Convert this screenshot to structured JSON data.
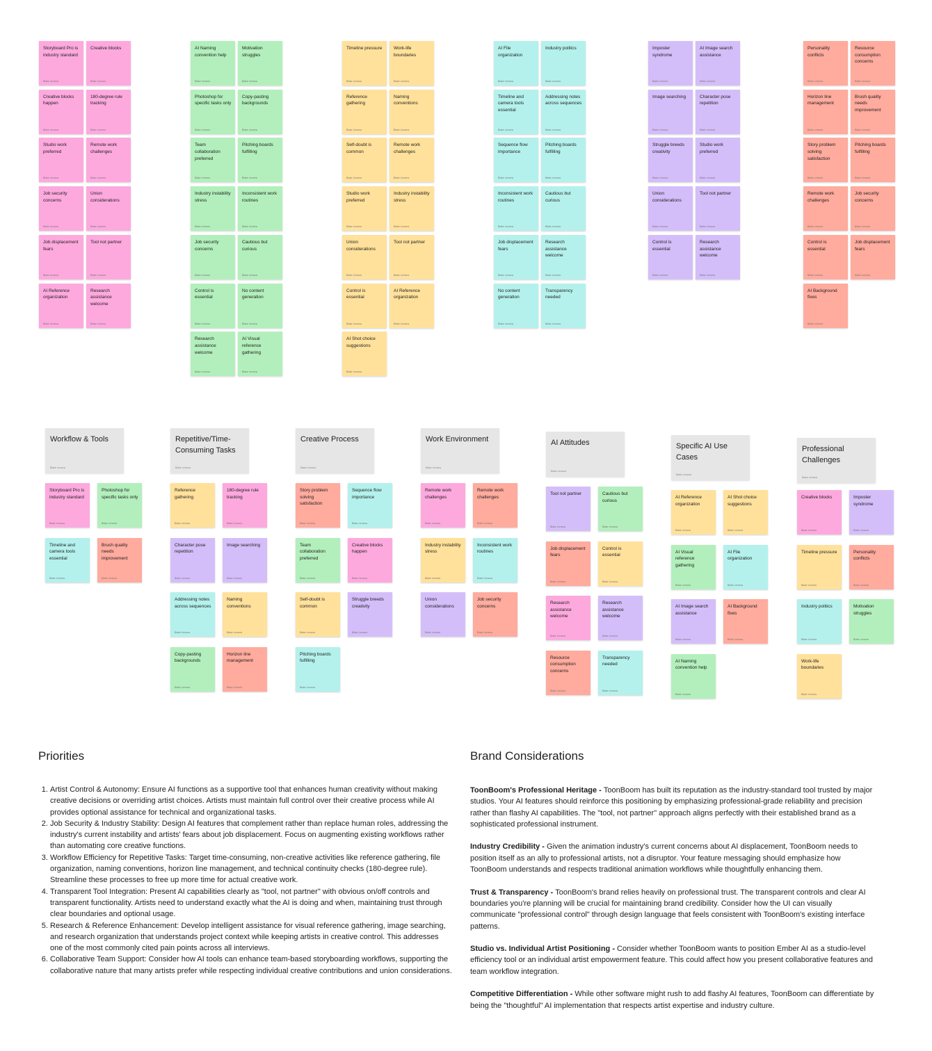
{
  "author": "Blake Lemons",
  "board_clusters": [
    {
      "notes": [
        {
          "text": "Storyboard Pro is industry standard",
          "color": "pink"
        },
        {
          "text": "Creative blocks",
          "color": "pink"
        },
        {
          "text": "Creative blocks happen",
          "color": "pink"
        },
        {
          "text": "180-degree rule tracking",
          "color": "pink"
        },
        {
          "text": "Studio work preferred",
          "color": "pink"
        },
        {
          "text": "Remote work challenges",
          "color": "pink"
        },
        {
          "text": "Job security concerns",
          "color": "pink"
        },
        {
          "text": "Union considerations",
          "color": "pink"
        },
        {
          "text": "Job displacement fears",
          "color": "pink"
        },
        {
          "text": "Tool not partner",
          "color": "pink"
        },
        {
          "text": "AI Reference organization",
          "color": "pink"
        },
        {
          "text": "Research assistance welcome",
          "color": "pink"
        }
      ]
    },
    {
      "notes": [
        {
          "text": "AI Naming convention help",
          "color": "green"
        },
        {
          "text": "Motivation struggles",
          "color": "green"
        },
        {
          "text": "Photoshop for specific tasks only",
          "color": "green"
        },
        {
          "text": "Copy-pasting backgrounds",
          "color": "green"
        },
        {
          "text": "Team collaboration preferred",
          "color": "green"
        },
        {
          "text": "Pitching boards fulfilling",
          "color": "green"
        },
        {
          "text": "Industry instability stress",
          "color": "green"
        },
        {
          "text": "Inconsistent work routines",
          "color": "green"
        },
        {
          "text": "Job security concerns",
          "color": "green"
        },
        {
          "text": "Cautious but curious",
          "color": "green"
        },
        {
          "text": "Control is essential",
          "color": "green"
        },
        {
          "text": "No content generation",
          "color": "green"
        },
        {
          "text": "Research assistance welcome",
          "color": "green"
        },
        {
          "text": "AI Visual reference gathering",
          "color": "green"
        }
      ]
    },
    {
      "notes": [
        {
          "text": "Timeline pressure",
          "color": "yellow"
        },
        {
          "text": "Work-life boundaries",
          "color": "yellow"
        },
        {
          "text": "Reference gathering",
          "color": "yellow"
        },
        {
          "text": "Naming conventions",
          "color": "yellow"
        },
        {
          "text": "Self-doubt is common",
          "color": "yellow"
        },
        {
          "text": "Remote work challenges",
          "color": "yellow"
        },
        {
          "text": "Studio work preferred",
          "color": "yellow"
        },
        {
          "text": "Industry instability stress",
          "color": "yellow"
        },
        {
          "text": "Union considerations",
          "color": "yellow"
        },
        {
          "text": "Tool not partner",
          "color": "yellow"
        },
        {
          "text": "Control is essential",
          "color": "yellow"
        },
        {
          "text": "AI Reference organization",
          "color": "yellow"
        },
        {
          "text": "AI Shot choice suggestions",
          "color": "yellow"
        }
      ]
    },
    {
      "notes": [
        {
          "text": "AI File organization",
          "color": "cyan"
        },
        {
          "text": "Industry politics",
          "color": "cyan"
        },
        {
          "text": "Timeline and camera tools essential",
          "color": "cyan"
        },
        {
          "text": "Addressing notes across sequences",
          "color": "cyan"
        },
        {
          "text": "Sequence flow importance",
          "color": "cyan"
        },
        {
          "text": "Pitching boards fulfilling",
          "color": "cyan"
        },
        {
          "text": "Inconsistent work routines",
          "color": "cyan"
        },
        {
          "text": "Cautious but curious",
          "color": "cyan"
        },
        {
          "text": "Job displacement fears",
          "color": "cyan"
        },
        {
          "text": "Research assistance welcome",
          "color": "cyan"
        },
        {
          "text": "No content generation",
          "color": "cyan"
        },
        {
          "text": "Transparency needed",
          "color": "cyan"
        }
      ]
    },
    {
      "notes": [
        {
          "text": "Imposter syndrome",
          "color": "purple"
        },
        {
          "text": "AI Image search assistance",
          "color": "purple"
        },
        {
          "text": "Image searching",
          "color": "purple"
        },
        {
          "text": "Character pose repetition",
          "color": "purple"
        },
        {
          "text": "Struggle breeds creativity",
          "color": "purple"
        },
        {
          "text": "Studio work preferred",
          "color": "purple"
        },
        {
          "text": "Union considerations",
          "color": "purple"
        },
        {
          "text": "Tool not partner",
          "color": "purple"
        },
        {
          "text": "Control is essential",
          "color": "purple"
        },
        {
          "text": "Research assistance welcome",
          "color": "purple"
        }
      ]
    },
    {
      "notes": [
        {
          "text": "Personality conflicts",
          "color": "salmon"
        },
        {
          "text": "Resource consumption concerns",
          "color": "salmon"
        },
        {
          "text": "Horizon line management",
          "color": "salmon"
        },
        {
          "text": "Brush quality needs improvement",
          "color": "salmon"
        },
        {
          "text": "Story problem solving satisfaction",
          "color": "salmon"
        },
        {
          "text": "Pitching boards fulfilling",
          "color": "salmon"
        },
        {
          "text": "Remote work challenges",
          "color": "salmon"
        },
        {
          "text": "Job security concerns",
          "color": "salmon"
        },
        {
          "text": "Control is essential",
          "color": "salmon"
        },
        {
          "text": "Job displacement fears",
          "color": "salmon"
        },
        {
          "text": "AI Background fixes",
          "color": "salmon"
        }
      ]
    }
  ],
  "categories": [
    {
      "title": "Workflow & Tools",
      "notes": [
        {
          "text": "Storyboard Pro is industry standard",
          "color": "pink"
        },
        {
          "text": "Photoshop for specific tasks only",
          "color": "green"
        },
        {
          "text": "Timeline and camera tools essential",
          "color": "cyan"
        },
        {
          "text": "Brush quality needs improvement",
          "color": "salmon"
        }
      ]
    },
    {
      "title": "Repetitive/Time-Consuming Tasks",
      "notes": [
        {
          "text": "Reference gathering",
          "color": "yellow"
        },
        {
          "text": "180-degree rule tracking",
          "color": "pink"
        },
        {
          "text": "Character pose repetition",
          "color": "purple"
        },
        {
          "text": "Image searching",
          "color": "purple"
        },
        {
          "text": "Addressing notes across sequences",
          "color": "cyan"
        },
        {
          "text": "Naming conventions",
          "color": "yellow"
        },
        {
          "text": "Copy-pasting backgrounds",
          "color": "green"
        },
        {
          "text": "Horizon line management",
          "color": "salmon"
        }
      ]
    },
    {
      "title": "Creative Process",
      "notes": [
        {
          "text": "Story problem solving satisfaction",
          "color": "salmon"
        },
        {
          "text": "Sequence flow importance",
          "color": "cyan"
        },
        {
          "text": "Team collaboration preferred",
          "color": "green"
        },
        {
          "text": "Creative blocks happen",
          "color": "pink"
        },
        {
          "text": "Self-doubt is common",
          "color": "yellow"
        },
        {
          "text": "Struggle breeds creativity",
          "color": "purple"
        },
        {
          "text": "Pitching boards fulfilling",
          "color": "cyan"
        }
      ]
    },
    {
      "title": "Work Environment",
      "notes": [
        {
          "text": "Remote work challenges",
          "color": "pink"
        },
        {
          "text": "Remote work challenges",
          "color": "salmon"
        },
        {
          "text": "Industry instability stress",
          "color": "yellow"
        },
        {
          "text": "Inconsistent work routines",
          "color": "cyan"
        },
        {
          "text": "Union considerations",
          "color": "purple"
        },
        {
          "text": "Job security concerns",
          "color": "salmon"
        }
      ]
    },
    {
      "title": "AI Attitudes",
      "notes": [
        {
          "text": "Tool not partner",
          "color": "purple"
        },
        {
          "text": "Cautious but curious",
          "color": "green"
        },
        {
          "text": "Job displacement fears",
          "color": "salmon"
        },
        {
          "text": "Control is essential",
          "color": "yellow"
        },
        {
          "text": "Research assistance welcome",
          "color": "pink"
        },
        {
          "text": "Research assistance welcome",
          "color": "purple"
        },
        {
          "text": "Resource consumption concerns",
          "color": "salmon"
        },
        {
          "text": "Transparency needed",
          "color": "cyan"
        }
      ]
    },
    {
      "title": "Specific AI Use Cases",
      "notes": [
        {
          "text": "AI Reference organization",
          "color": "yellow"
        },
        {
          "text": "AI Shot choice suggestions",
          "color": "yellow"
        },
        {
          "text": "AI Visual reference gathering",
          "color": "green"
        },
        {
          "text": "AI File organization",
          "color": "cyan"
        },
        {
          "text": "AI Image search assistance",
          "color": "purple"
        },
        {
          "text": "AI Background fixes",
          "color": "salmon"
        },
        {
          "text": "AI Naming convention help",
          "color": "green"
        }
      ]
    },
    {
      "title": "Professional Challenges",
      "notes": [
        {
          "text": "Creative blocks",
          "color": "pink"
        },
        {
          "text": "Imposter syndrome",
          "color": "purple"
        },
        {
          "text": "Timeline pressure",
          "color": "yellow"
        },
        {
          "text": "Personality conflicts",
          "color": "salmon"
        },
        {
          "text": "Industry politics",
          "color": "cyan"
        },
        {
          "text": "Motivation struggles",
          "color": "green"
        },
        {
          "text": "Work-life boundaries",
          "color": "yellow"
        }
      ]
    }
  ],
  "priorities": {
    "title": "Priorities",
    "items": [
      "Artist Control & Autonomy: Ensure AI functions as a supportive tool that enhances human creativity without making creative decisions or overriding artist choices. Artists must maintain full control over their creative process while AI provides optional assistance for technical and organizational tasks.",
      "Job Security & Industry Stability: Design AI features that complement rather than replace human roles, addressing the industry's current instability and artists' fears about job displacement. Focus on augmenting existing workflows rather than automating core creative functions.",
      "Workflow Efficiency for Repetitive Tasks: Target time-consuming, non-creative activities like reference gathering, file organization, naming conventions, horizon line management, and technical continuity checks (180-degree rule). Streamline these processes to free up more time for actual creative work.",
      "Transparent Tool Integration: Present AI capabilities clearly as \"tool, not partner\" with obvious on/off controls and transparent functionality. Artists need to understand exactly what the AI is doing and when, maintaining trust through clear boundaries and optional usage.",
      "Research & Reference Enhancement: Develop intelligent assistance for visual reference gathering, image searching, and research organization that understands project context while keeping artists in creative control. This addresses one of the most commonly cited pain points across all interviews.",
      "Collaborative Team Support: Consider how AI tools can enhance team-based storyboarding workflows, supporting the collaborative nature that many artists prefer while respecting individual creative contributions and union considerations."
    ]
  },
  "brand": {
    "title": "Brand Considerations",
    "paragraphs": [
      {
        "lead": "ToonBoom's Professional Heritage - ",
        "body": "ToonBoom has built its reputation as the industry-standard tool trusted by major studios. Your AI features should reinforce this positioning by emphasizing professional-grade reliability and precision rather than flashy AI capabilities. The \"tool, not partner\" approach aligns perfectly with their established brand as a sophisticated professional instrument."
      },
      {
        "lead": "Industry Credibility - ",
        "body": "Given the animation industry's current concerns about AI displacement, ToonBoom needs to position itself as an ally to professional artists, not a disruptor. Your feature messaging should emphasize how ToonBoom understands and respects traditional animation workflows while thoughtfully enhancing them."
      },
      {
        "lead": "Trust & Transparency - ",
        "body": "ToonBoom's brand relies heavily on professional trust. The transparent controls and clear AI boundaries you're planning will be crucial for maintaining brand credibility. Consider how the UI can visually communicate \"professional control\" through design language that feels consistent with ToonBoom's existing interface patterns."
      },
      {
        "lead": "Studio vs. Individual Artist Positioning - ",
        "body": "Consider whether ToonBoom wants to position Ember AI as a studio-level efficiency tool or an individual artist empowerment feature. This could affect how you present collaborative features and team workflow integration."
      },
      {
        "lead": "Competitive Differentiation - ",
        "body": "While other software might rush to add flashy AI features, ToonBoom can differentiate by being the \"thoughtful\" AI implementation that respects artist expertise and industry culture."
      }
    ]
  }
}
